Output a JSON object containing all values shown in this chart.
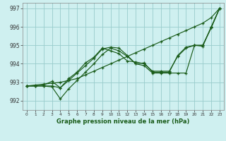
{
  "title": "Graphe pression niveau de la mer (hPa)",
  "background_color": "#cff0f0",
  "grid_color": "#99cccc",
  "line_color": "#1a5c1a",
  "xlim": [
    -0.5,
    23.5
  ],
  "ylim": [
    991.5,
    997.3
  ],
  "yticks": [
    992,
    993,
    994,
    995,
    996,
    997
  ],
  "xticks": [
    0,
    1,
    2,
    3,
    4,
    5,
    6,
    7,
    8,
    9,
    10,
    11,
    12,
    13,
    14,
    15,
    16,
    17,
    18,
    19,
    20,
    21,
    22,
    23
  ],
  "series": [
    [
      992.8,
      992.85,
      992.9,
      992.95,
      993.0,
      993.1,
      993.2,
      993.4,
      993.6,
      993.8,
      994.0,
      994.2,
      994.4,
      994.6,
      994.8,
      995.0,
      995.2,
      995.4,
      995.6,
      995.8,
      996.0,
      996.2,
      996.5,
      997.0
    ],
    [
      992.8,
      992.8,
      992.8,
      992.75,
      992.1,
      992.65,
      993.1,
      993.55,
      994.0,
      994.5,
      994.85,
      994.7,
      994.4,
      994.0,
      993.9,
      993.5,
      993.5,
      993.5,
      993.5,
      993.5,
      995.0,
      995.0,
      995.95,
      997.0
    ],
    [
      992.8,
      992.8,
      992.8,
      992.8,
      992.7,
      993.1,
      993.5,
      993.9,
      994.3,
      994.8,
      994.9,
      994.85,
      994.45,
      994.0,
      994.05,
      993.55,
      993.55,
      993.55,
      994.45,
      994.9,
      995.0,
      994.95,
      996.0,
      997.0
    ],
    [
      992.8,
      992.8,
      992.85,
      993.05,
      992.7,
      993.2,
      993.55,
      994.05,
      994.35,
      994.85,
      994.7,
      994.55,
      994.15,
      994.1,
      994.0,
      993.6,
      993.6,
      993.6,
      994.4,
      994.85,
      995.0,
      995.0,
      995.95,
      997.0
    ]
  ]
}
